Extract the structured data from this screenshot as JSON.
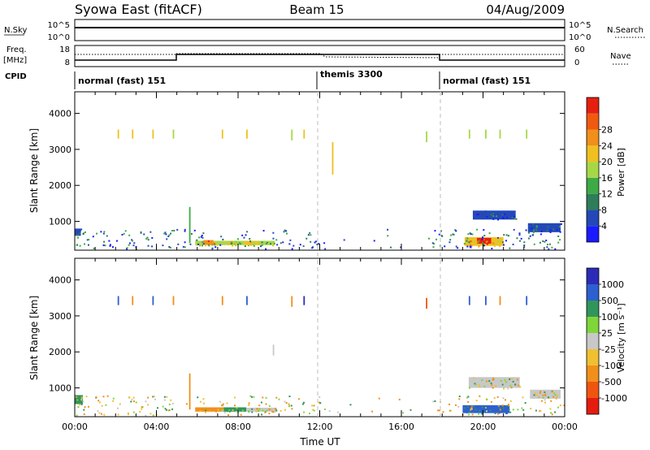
{
  "header": {
    "title": "Syowa East (fitACF)",
    "beam": "Beam 15",
    "date": "04/Aug/2009"
  },
  "nsky_panel": {
    "label": "N.Sky",
    "ticks_left": [
      "10^5",
      "10^0"
    ],
    "ticks_right": [
      "10^5",
      "10^0"
    ],
    "right_label": "N.Search"
  },
  "freq_panel": {
    "label_line1": "Freq.",
    "label_line2": "[MHz]",
    "ticks_left": [
      "18",
      "8"
    ],
    "ticks_right": [
      "60",
      "0"
    ],
    "right_label": "Nave"
  },
  "cpid_panel": {
    "label": "CPID",
    "segments": [
      {
        "name": "normal (fast) 151",
        "start_hour": 0
      },
      {
        "name": "themis 3300",
        "start_hour": 12
      },
      {
        "name": "normal (fast) 151",
        "start_hour": 18
      }
    ]
  },
  "colors": {
    "power_scale": [
      "#1a1aff",
      "#2448b8",
      "#2e7d5a",
      "#3daa46",
      "#a6d846",
      "#f0c020",
      "#f0901a",
      "#f05a10",
      "#e52010"
    ],
    "velocity_scale": [
      "#2b2bb8",
      "#2e5fd0",
      "#30955c",
      "#7fd63a",
      "#c8c8c8",
      "#f0c030",
      "#f0901a",
      "#f05510",
      "#e51c10"
    ]
  },
  "chart_data": [
    {
      "type": "heatmap",
      "panel": "power",
      "ylabel": "Slant Range [km]",
      "yticks": [
        "1000",
        "2000",
        "3000",
        "4000"
      ],
      "ylim": [
        200,
        4600
      ],
      "xlim": [
        0,
        24
      ],
      "colorbar_label": "Power [dB]",
      "colorbar_ticks": [
        "4",
        "8",
        "12",
        "16",
        "20",
        "24",
        "28"
      ],
      "regions": [
        {
          "t0": 5.9,
          "t1": 9.8,
          "r0": 340,
          "r1": 460,
          "level": 16
        },
        {
          "t0": 6.3,
          "t1": 6.8,
          "r0": 360,
          "r1": 480,
          "level": 24
        },
        {
          "t0": 8.3,
          "t1": 9.0,
          "r0": 350,
          "r1": 450,
          "level": 20
        },
        {
          "t0": 19.1,
          "t1": 21.0,
          "r0": 320,
          "r1": 560,
          "level": 20
        },
        {
          "t0": 19.7,
          "t1": 20.4,
          "r0": 380,
          "r1": 540,
          "level": 28
        },
        {
          "t0": 19.5,
          "t1": 21.6,
          "r0": 1050,
          "r1": 1300,
          "level": 6
        },
        {
          "t0": 22.2,
          "t1": 23.8,
          "r0": 700,
          "r1": 950,
          "level": 6
        },
        {
          "t0": 0.0,
          "t1": 0.3,
          "r0": 600,
          "r1": 800,
          "level": 6
        }
      ],
      "columns": [
        {
          "t": 2.1,
          "r0": 3300,
          "r1": 3550,
          "level": 18
        },
        {
          "t": 2.8,
          "r0": 3300,
          "r1": 3550,
          "level": 18
        },
        {
          "t": 3.8,
          "r0": 3300,
          "r1": 3550,
          "level": 18
        },
        {
          "t": 4.8,
          "r0": 3300,
          "r1": 3550,
          "level": 16
        },
        {
          "t": 7.2,
          "r0": 3300,
          "r1": 3550,
          "level": 18
        },
        {
          "t": 8.4,
          "r0": 3300,
          "r1": 3550,
          "level": 18
        },
        {
          "t": 10.6,
          "r0": 3250,
          "r1": 3550,
          "level": 16
        },
        {
          "t": 11.2,
          "r0": 3300,
          "r1": 3550,
          "level": 18
        },
        {
          "t": 17.2,
          "r0": 3200,
          "r1": 3500,
          "level": 14
        },
        {
          "t": 19.3,
          "r0": 3300,
          "r1": 3550,
          "level": 14
        },
        {
          "t": 20.1,
          "r0": 3300,
          "r1": 3550,
          "level": 14
        },
        {
          "t": 20.8,
          "r0": 3300,
          "r1": 3550,
          "level": 14
        },
        {
          "t": 22.1,
          "r0": 3300,
          "r1": 3550,
          "level": 14
        },
        {
          "t": 5.6,
          "r0": 400,
          "r1": 1400,
          "level": 12
        },
        {
          "t": 12.6,
          "r0": 2300,
          "r1": 3200,
          "level": 20
        }
      ]
    },
    {
      "type": "heatmap",
      "panel": "velocity",
      "ylabel": "Slant Range [km]",
      "xlabel": "Time UT",
      "yticks": [
        "1000",
        "2000",
        "3000",
        "4000"
      ],
      "ylim": [
        200,
        4600
      ],
      "xlim": [
        0,
        24
      ],
      "xticks": [
        "00:00",
        "04:00",
        "08:00",
        "12:00",
        "16:00",
        "20:00",
        "00:00"
      ],
      "colorbar_label": "Velocity [m s⁻¹]",
      "colorbar_ticks": [
        "1000",
        "500",
        "100",
        "25",
        "-25",
        "-100",
        "-500",
        "-1000"
      ],
      "regions": [
        {
          "t0": 5.9,
          "t1": 7.3,
          "r0": 340,
          "r1": 460,
          "level": -100
        },
        {
          "t0": 7.3,
          "t1": 8.4,
          "r0": 340,
          "r1": 460,
          "level": 100
        },
        {
          "t0": 8.4,
          "t1": 9.9,
          "r0": 340,
          "r1": 450,
          "level": 0
        },
        {
          "t0": 19.0,
          "t1": 21.3,
          "r0": 300,
          "r1": 520,
          "level": 300
        },
        {
          "t0": 19.3,
          "t1": 21.8,
          "r0": 1000,
          "r1": 1300,
          "level": 0
        },
        {
          "t0": 22.3,
          "t1": 23.8,
          "r0": 700,
          "r1": 950,
          "level": 0
        },
        {
          "t0": 0.0,
          "t1": 0.4,
          "r0": 550,
          "r1": 800,
          "level": 100
        }
      ],
      "columns": [
        {
          "t": 2.1,
          "r0": 3300,
          "r1": 3550,
          "level": 500
        },
        {
          "t": 2.8,
          "r0": 3300,
          "r1": 3550,
          "level": -300
        },
        {
          "t": 3.8,
          "r0": 3300,
          "r1": 3550,
          "level": 500
        },
        {
          "t": 4.8,
          "r0": 3300,
          "r1": 3550,
          "level": -300
        },
        {
          "t": 7.2,
          "r0": 3300,
          "r1": 3550,
          "level": -300
        },
        {
          "t": 8.4,
          "r0": 3300,
          "r1": 3550,
          "level": 500
        },
        {
          "t": 10.6,
          "r0": 3250,
          "r1": 3550,
          "level": -300
        },
        {
          "t": 11.2,
          "r0": 3300,
          "r1": 3550,
          "level": 700
        },
        {
          "t": 17.2,
          "r0": 3200,
          "r1": 3500,
          "level": -600
        },
        {
          "t": 19.3,
          "r0": 3300,
          "r1": 3550,
          "level": 500
        },
        {
          "t": 20.1,
          "r0": 3300,
          "r1": 3550,
          "level": 500
        },
        {
          "t": 20.8,
          "r0": 3300,
          "r1": 3550,
          "level": -300
        },
        {
          "t": 22.1,
          "r0": 3300,
          "r1": 3550,
          "level": 500
        },
        {
          "t": 9.7,
          "r0": 1900,
          "r1": 2200,
          "level": 0
        },
        {
          "t": 5.6,
          "r0": 400,
          "r1": 1400,
          "level": -100
        }
      ]
    }
  ]
}
